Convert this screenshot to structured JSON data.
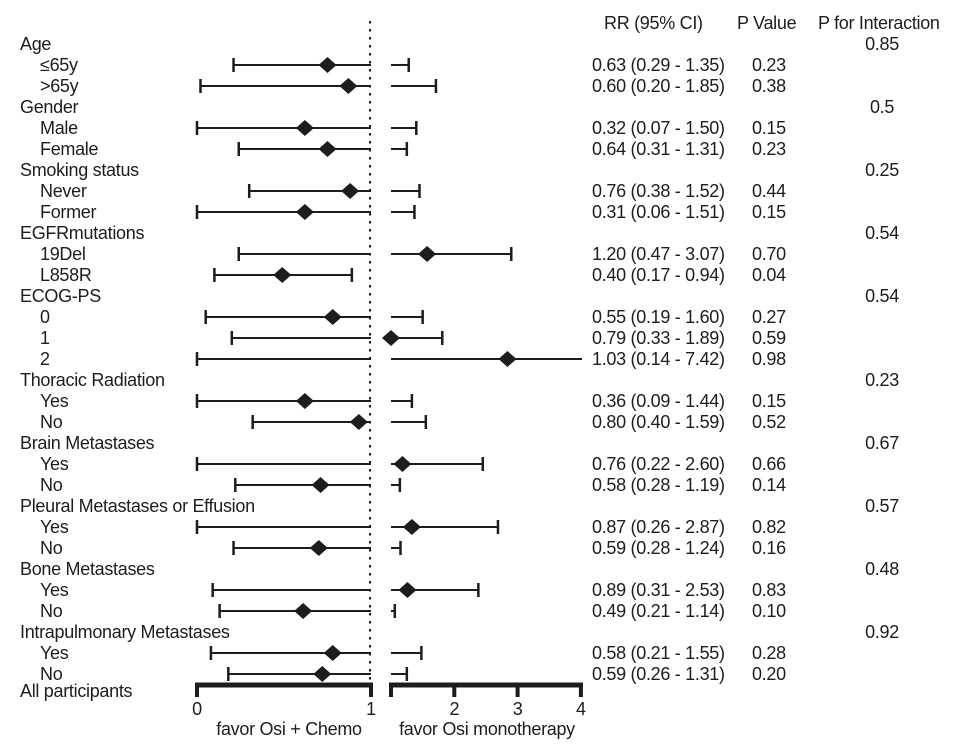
{
  "chart_data": {
    "type": "forest",
    "columns": {
      "rr_header": "RR (95% CI)",
      "p_header": "P Value",
      "p_interaction_header": "P for Interaction"
    },
    "axis": {
      "break": true,
      "xlim": [
        0,
        4
      ],
      "reference_value": 1,
      "ticks": [
        {
          "label": "0",
          "seg": "L",
          "v": 0
        },
        {
          "label": "1",
          "seg": "L",
          "v": 1
        },
        {
          "label": "",
          "seg": "R",
          "v": 1
        },
        {
          "label": "2",
          "seg": "R",
          "v": 2
        },
        {
          "label": "3",
          "seg": "R",
          "v": 3
        },
        {
          "label": "4",
          "seg": "R",
          "v": 4
        }
      ],
      "left_direction_label": "favor Osi + Chemo",
      "right_direction_label": "favor Osi monotherapy"
    },
    "rows": [
      {
        "type": "group",
        "label": "Age",
        "p_interaction": "0.85"
      },
      {
        "type": "item",
        "label": "≤65y",
        "rr": "0.63 (0.29 - 1.35)",
        "p": "0.23",
        "plot": {
          "lo": 0.21,
          "mid": 0.75,
          "hi": 1.28,
          "cap_hi": true
        }
      },
      {
        "type": "item",
        "label": ">65y",
        "rr": "0.60 (0.20 - 1.85)",
        "p": "0.38",
        "plot": {
          "lo": 0.02,
          "mid": 0.87,
          "hi": 1.71,
          "cap_hi": true
        }
      },
      {
        "type": "group",
        "label": "Gender",
        "p_interaction": "0.5"
      },
      {
        "type": "item",
        "label": "Male",
        "rr": "0.32 (0.07 - 1.50)",
        "p": "0.15",
        "plot": {
          "lo": 0.0,
          "mid": 0.62,
          "hi": 1.4,
          "cap_hi": true
        }
      },
      {
        "type": "item",
        "label": "Female",
        "rr": "0.64 (0.31 - 1.31)",
        "p": "0.23",
        "plot": {
          "lo": 0.24,
          "mid": 0.75,
          "hi": 1.25,
          "cap_hi": true
        }
      },
      {
        "type": "group",
        "label": "Smoking status",
        "p_interaction": "0.25"
      },
      {
        "type": "item",
        "label": "Never",
        "rr": "0.76 (0.38 - 1.52)",
        "p": "0.44",
        "plot": {
          "lo": 0.3,
          "mid": 0.88,
          "hi": 1.45,
          "cap_hi": true
        }
      },
      {
        "type": "item",
        "label": "Former",
        "rr": "0.31 (0.06 - 1.51)",
        "p": "0.15",
        "plot": {
          "lo": 0.0,
          "mid": 0.62,
          "hi": 1.37,
          "cap_hi": true
        }
      },
      {
        "type": "group",
        "label": "EGFRmutations",
        "p_interaction": "0.54"
      },
      {
        "type": "item",
        "label": "19Del",
        "rr": "1.20 (0.47 - 3.07)",
        "p": "0.70",
        "plot": {
          "lo": 0.24,
          "mid": 1.57,
          "hi": 2.9,
          "cap_hi": true
        }
      },
      {
        "type": "item",
        "label": "L858R",
        "rr": "0.40 (0.17 - 0.94)",
        "p": "0.04",
        "plot": {
          "lo": 0.1,
          "mid": 0.49,
          "hi": 0.89,
          "cap_hi": true
        }
      },
      {
        "type": "group",
        "label": "ECOG-PS",
        "p_interaction": "0.54"
      },
      {
        "type": "item",
        "label": "0",
        "rr": "0.55 (0.19 - 1.60)",
        "p": "0.27",
        "plot": {
          "lo": 0.05,
          "mid": 0.78,
          "hi": 1.5,
          "cap_hi": true
        }
      },
      {
        "type": "item",
        "label": "1",
        "rr": "0.79 (0.33 - 1.89)",
        "p": "0.59",
        "plot": {
          "lo": 0.2,
          "mid": 1.0,
          "hi": 1.81,
          "cap_hi": true
        }
      },
      {
        "type": "item",
        "label": "2",
        "rr": "1.03 (0.14 - 7.42)",
        "p": "0.98",
        "plot": {
          "lo": 0.0,
          "mid": 2.84,
          "hi": 4.2,
          "cap_hi": false
        }
      },
      {
        "type": "group",
        "label": "Thoracic Radiation",
        "p_interaction": "0.23"
      },
      {
        "type": "item",
        "label": "Yes",
        "rr": "0.36 (0.09 - 1.44)",
        "p": "0.15",
        "plot": {
          "lo": 0.0,
          "mid": 0.62,
          "hi": 1.33,
          "cap_hi": true
        }
      },
      {
        "type": "item",
        "label": "No",
        "rr": "0.80 (0.40 - 1.59)",
        "p": "0.52",
        "plot": {
          "lo": 0.32,
          "mid": 0.93,
          "hi": 1.55,
          "cap_hi": true
        }
      },
      {
        "type": "group",
        "label": "Brain Metastases",
        "p_interaction": "0.67"
      },
      {
        "type": "item",
        "label": "Yes",
        "rr": "0.76 (0.22 - 2.60)",
        "p": "0.66",
        "plot": {
          "lo": 0.0,
          "mid": 1.18,
          "hi": 2.45,
          "cap_hi": true
        }
      },
      {
        "type": "item",
        "label": "No",
        "rr": "0.58 (0.28 - 1.19)",
        "p": "0.14",
        "plot": {
          "lo": 0.22,
          "mid": 0.71,
          "hi": 1.14,
          "cap_hi": true
        }
      },
      {
        "type": "group",
        "label": "Pleural Metastases or Effusion",
        "p_interaction": "0.57"
      },
      {
        "type": "item",
        "label": "Yes",
        "rr": "0.87 (0.26 - 2.87)",
        "p": "0.82",
        "plot": {
          "lo": 0.0,
          "mid": 1.33,
          "hi": 2.69,
          "cap_hi": true
        }
      },
      {
        "type": "item",
        "label": "No",
        "rr": "0.59 (0.28 - 1.24)",
        "p": "0.16",
        "plot": {
          "lo": 0.21,
          "mid": 0.7,
          "hi": 1.15,
          "cap_hi": true
        }
      },
      {
        "type": "group",
        "label": "Bone Metastases",
        "p_interaction": "0.48"
      },
      {
        "type": "item",
        "label": "Yes",
        "rr": "0.89 (0.31 - 2.53)",
        "p": "0.83",
        "plot": {
          "lo": 0.09,
          "mid": 1.26,
          "hi": 2.38,
          "cap_hi": true
        }
      },
      {
        "type": "item",
        "label": "No",
        "rr": "0.49 (0.21 - 1.14)",
        "p": "0.10",
        "plot": {
          "lo": 0.13,
          "mid": 0.61,
          "hi": 1.06,
          "cap_hi": true
        }
      },
      {
        "type": "group",
        "label": "Intrapulmonary Metastases",
        "p_interaction": "0.92"
      },
      {
        "type": "item",
        "label": "Yes",
        "rr": "0.58 (0.21 - 1.55)",
        "p": "0.28",
        "plot": {
          "lo": 0.08,
          "mid": 0.78,
          "hi": 1.48,
          "cap_hi": true
        }
      },
      {
        "type": "item",
        "label": "No",
        "rr": "0.59 (0.26 - 1.31)",
        "p": "0.20",
        "plot": {
          "lo": 0.18,
          "mid": 0.72,
          "hi": 1.25,
          "cap_hi": true
        }
      },
      {
        "type": "footer",
        "label": "All participants"
      }
    ]
  },
  "colors": {
    "ink": "#1d1d1d",
    "background": "#ffffff"
  }
}
